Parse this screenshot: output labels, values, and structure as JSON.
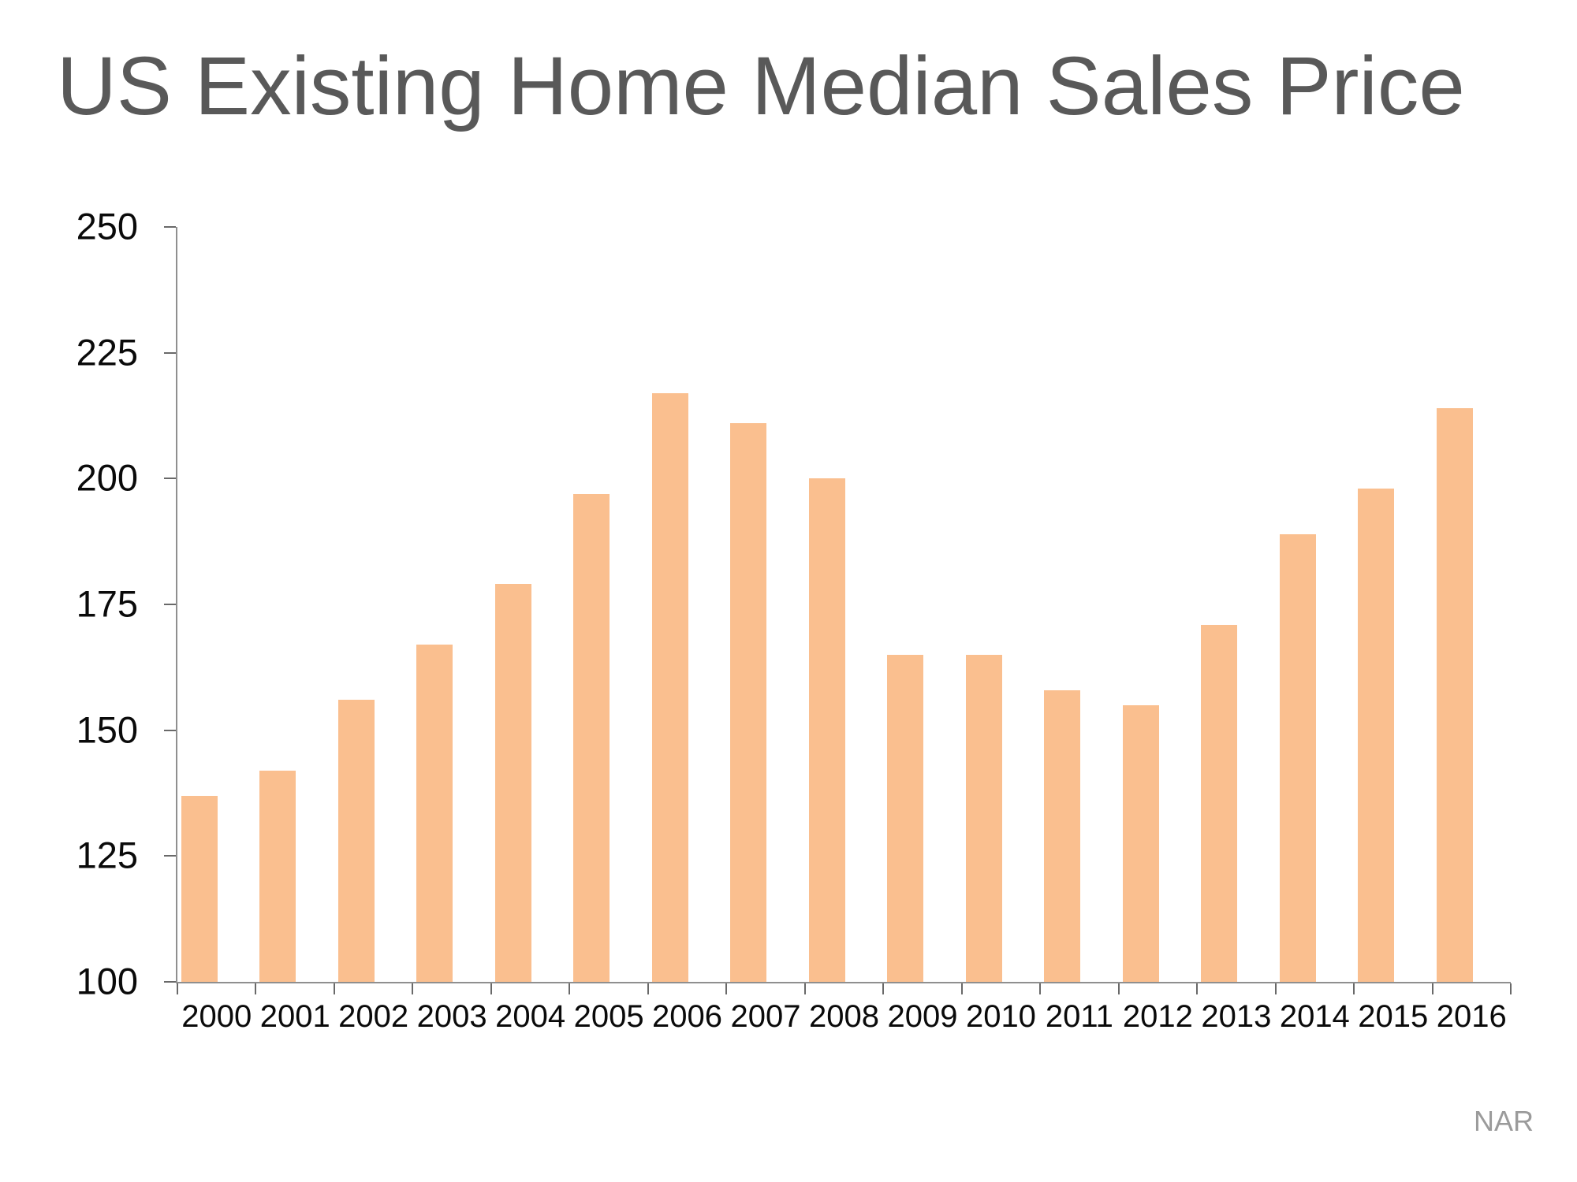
{
  "title": "US Existing Home Median Sales Price",
  "source": "NAR",
  "colors": {
    "bar": "#FABF8F",
    "title_text": "#595959",
    "axis_line": "#8f8f8f",
    "tick_mark": "#696969",
    "tick_label": "#0a0a0a",
    "source_text": "#9b9b9b",
    "background": "#ffffff"
  },
  "chart_data": {
    "type": "bar",
    "title": "US Existing Home Median Sales Price",
    "categories": [
      "2000",
      "2001",
      "2002",
      "2003",
      "2004",
      "2005",
      "2006",
      "2007",
      "2008",
      "2009",
      "2010",
      "2011",
      "2012",
      "2013",
      "2014",
      "2015",
      "2016"
    ],
    "values": [
      137,
      142,
      156,
      167,
      179,
      197,
      217,
      211,
      200,
      165,
      165,
      158,
      155,
      171,
      189,
      198,
      214
    ],
    "xlabel": "",
    "ylabel": "",
    "ylim": [
      100,
      250
    ],
    "yticks": [
      250,
      225,
      200,
      175,
      150,
      125,
      100
    ],
    "grid": false,
    "legend": "none",
    "source": "NAR"
  }
}
